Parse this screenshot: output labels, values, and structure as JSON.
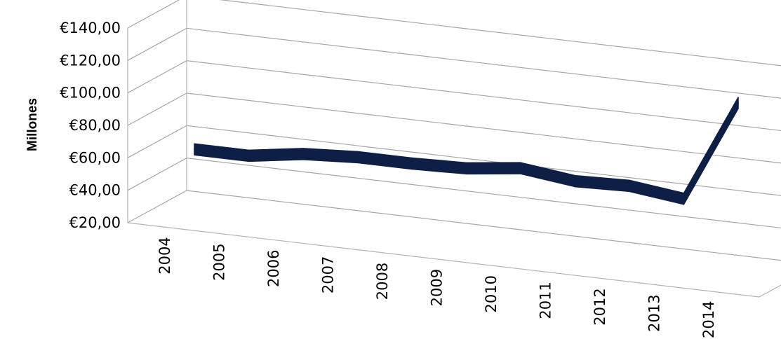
{
  "chart_data": {
    "type": "line",
    "style": "3d-ribbon",
    "title": "",
    "xlabel": "",
    "ylabel": "Millones",
    "categories": [
      "2004",
      "2005",
      "2006",
      "2007",
      "2008",
      "2009",
      "2010",
      "2011",
      "2012",
      "2013",
      "2014"
    ],
    "series": [
      {
        "values": [
          58,
          58,
          63,
          65,
          65,
          66,
          70,
          66,
          67,
          63,
          126
        ],
        "color": "#0d1f44"
      }
    ],
    "ylim": [
      20,
      140
    ],
    "yticks": [
      "€20,00",
      "€40,00",
      "€60,00",
      "€80,00",
      "€100,00",
      "€120,00",
      "€140,00"
    ],
    "grid": true,
    "legend": "none"
  }
}
